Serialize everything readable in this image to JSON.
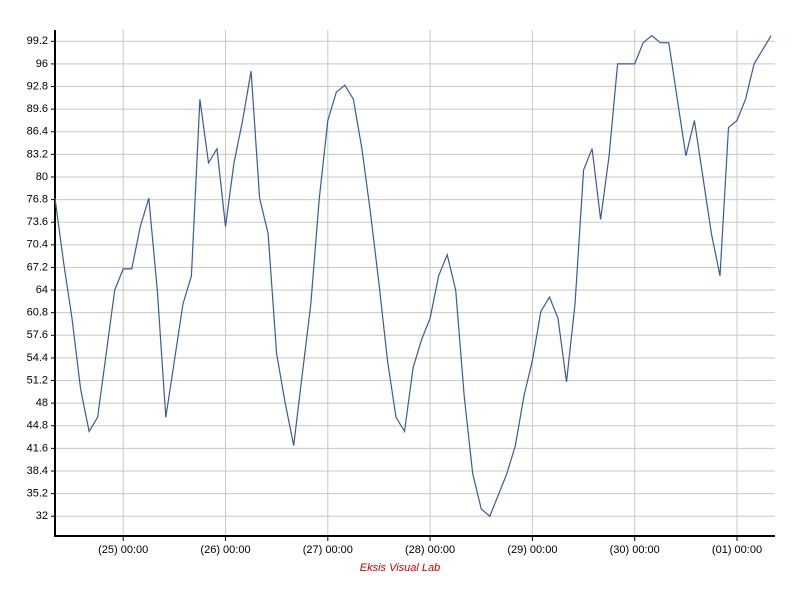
{
  "chart_data": {
    "type": "line",
    "x": [
      "(24) 08:00",
      "(24) 10:00",
      "(24) 12:00",
      "(24) 14:00",
      "(24) 16:00",
      "(24) 18:00",
      "(24) 20:00",
      "(24) 22:00",
      "(25) 00:00",
      "(25) 02:00",
      "(25) 04:00",
      "(25) 06:00",
      "(25) 08:00",
      "(25) 10:00",
      "(25) 12:00",
      "(25) 14:00",
      "(25) 16:00",
      "(25) 18:00",
      "(25) 20:00",
      "(25) 22:00",
      "(26) 00:00",
      "(26) 02:00",
      "(26) 04:00",
      "(26) 06:00",
      "(26) 08:00",
      "(26) 10:00",
      "(26) 12:00",
      "(26) 14:00",
      "(26) 16:00",
      "(26) 18:00",
      "(26) 20:00",
      "(26) 22:00",
      "(27) 00:00",
      "(27) 02:00",
      "(27) 04:00",
      "(27) 06:00",
      "(27) 08:00",
      "(27) 10:00",
      "(27) 12:00",
      "(27) 14:00",
      "(27) 16:00",
      "(27) 18:00",
      "(27) 20:00",
      "(27) 22:00",
      "(28) 00:00",
      "(28) 02:00",
      "(28) 04:00",
      "(28) 06:00",
      "(28) 08:00",
      "(28) 10:00",
      "(28) 12:00",
      "(28) 14:00",
      "(28) 16:00",
      "(28) 18:00",
      "(28) 20:00",
      "(28) 22:00",
      "(29) 00:00",
      "(29) 02:00",
      "(29) 04:00",
      "(29) 06:00",
      "(29) 08:00",
      "(29) 10:00",
      "(29) 12:00",
      "(29) 14:00",
      "(29) 16:00",
      "(29) 18:00",
      "(29) 20:00",
      "(29) 22:00",
      "(30) 00:00",
      "(30) 02:00",
      "(30) 04:00",
      "(30) 06:00",
      "(30) 08:00",
      "(30) 10:00",
      "(30) 12:00",
      "(30) 14:00",
      "(30) 16:00",
      "(30) 18:00",
      "(30) 20:00",
      "(30) 22:00",
      "(01) 00:00",
      "(01) 02:00",
      "(01) 04:00",
      "(01) 06:00",
      "(01) 08:00"
    ],
    "values": [
      77,
      68,
      60,
      50,
      44,
      46,
      55,
      64,
      67,
      67,
      73,
      77,
      64,
      46,
      54,
      62,
      66,
      91,
      82,
      84,
      73,
      82,
      88,
      95,
      77,
      72,
      55,
      48,
      42,
      52,
      62,
      77,
      88,
      92,
      93,
      91,
      84,
      75,
      65,
      54,
      46,
      44,
      53,
      57,
      60,
      66,
      69,
      64,
      49,
      38,
      33,
      32,
      35,
      38,
      42,
      49,
      54,
      61,
      63,
      60,
      51,
      62,
      81,
      84,
      74,
      83,
      96,
      96,
      96,
      99,
      100,
      99,
      99,
      91,
      83,
      88,
      80,
      72,
      66,
      87,
      88,
      91,
      96,
      98,
      100
    ],
    "color": "#3b5a98",
    "xticks": [
      "(25) 00:00",
      "(26) 00:00",
      "(27) 00:00",
      "(28) 00:00",
      "(29) 00:00",
      "(30) 00:00",
      "(01) 00:00"
    ],
    "ylim": [
      29.2,
      100.8
    ],
    "yticks": [
      32,
      35.2,
      38.4,
      41.6,
      44.8,
      48,
      51.2,
      54.4,
      57.6,
      60.8,
      64,
      67.2,
      70.4,
      73.6,
      76.8,
      80,
      83.2,
      86.4,
      89.6,
      92.8,
      96,
      99.2
    ],
    "grid": true,
    "footer": "Eksis Visual Lab"
  }
}
